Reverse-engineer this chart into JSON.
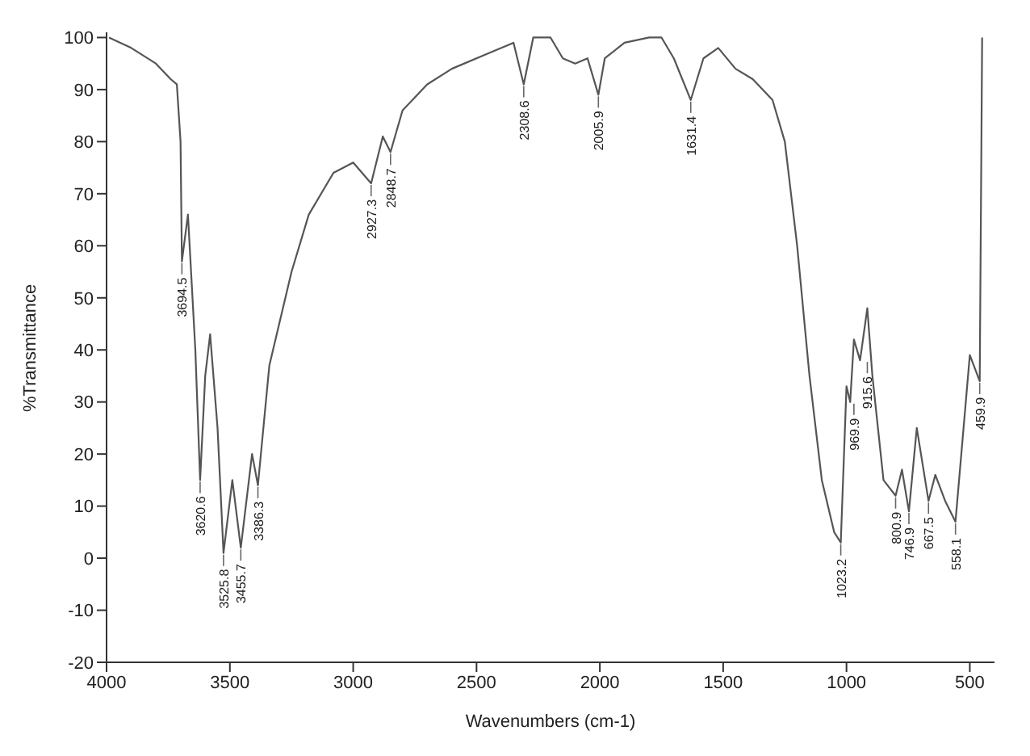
{
  "chart_data": {
    "type": "line",
    "xlabel": "Wavenumbers (cm-1)",
    "ylabel": "%Transmittance",
    "xlim": [
      4000,
      400
    ],
    "xticks": [
      4000,
      3500,
      3000,
      2500,
      2000,
      1500,
      1000,
      500
    ],
    "ylim": [
      -20,
      101
    ],
    "yticks": [
      -20,
      -10,
      0,
      10,
      20,
      30,
      40,
      50,
      60,
      70,
      80,
      90,
      100
    ],
    "grid": false,
    "legend": false,
    "marker": "none",
    "line_style": "solid",
    "series": [
      {
        "color": "#555555",
        "x": [
          3990,
          3900,
          3800,
          3740,
          3715,
          3700,
          3694.5,
          3670,
          3640,
          3620.6,
          3600,
          3580,
          3550,
          3525.8,
          3490,
          3455.7,
          3410,
          3386.3,
          3340,
          3250,
          3180,
          3080,
          3000,
          2927.3,
          2880,
          2848.7,
          2800,
          2700,
          2600,
          2450,
          2350,
          2308.6,
          2270,
          2200,
          2150,
          2100,
          2050,
          2005.9,
          1980,
          1900,
          1800,
          1750,
          1700,
          1631.4,
          1580,
          1520,
          1450,
          1380,
          1300,
          1250,
          1200,
          1150,
          1100,
          1050,
          1023.2,
          1000,
          985,
          969.9,
          945,
          915.6,
          895,
          850,
          800.9,
          775,
          746.9,
          715,
          667.5,
          640,
          600,
          558.1,
          500,
          459.9,
          450
        ],
        "values": [
          100,
          98,
          95,
          92,
          91,
          80,
          57,
          66,
          40,
          15,
          35,
          43,
          25,
          1,
          15,
          2,
          20,
          14,
          37,
          55,
          66,
          74,
          76,
          72,
          81,
          78,
          86,
          91,
          94,
          97,
          99,
          91,
          100,
          100,
          96,
          95,
          96,
          89,
          96,
          99,
          100,
          100,
          96,
          88,
          96,
          98,
          94,
          92,
          88,
          80,
          60,
          35,
          15,
          5,
          3,
          33,
          30,
          42,
          38,
          48,
          35,
          15,
          12,
          17,
          9,
          25,
          11,
          16,
          11,
          7,
          39,
          34,
          100
        ]
      }
    ],
    "annotations": [
      {
        "text": "3694.5",
        "x": 3694.5,
        "y": 57
      },
      {
        "text": "3620.6",
        "x": 3620.6,
        "y": 15
      },
      {
        "text": "3525.8",
        "x": 3525.8,
        "y": 1
      },
      {
        "text": "3455.7",
        "x": 3455.7,
        "y": 2
      },
      {
        "text": "3386.3",
        "x": 3386.3,
        "y": 14
      },
      {
        "text": "2927.3",
        "x": 2927.3,
        "y": 72
      },
      {
        "text": "2848.7",
        "x": 2848.7,
        "y": 78
      },
      {
        "text": "2308.6",
        "x": 2308.6,
        "y": 91
      },
      {
        "text": "2005.9",
        "x": 2005.9,
        "y": 89
      },
      {
        "text": "1631.4",
        "x": 1631.4,
        "y": 88
      },
      {
        "text": "1023.2",
        "x": 1023.2,
        "y": 3
      },
      {
        "text": "969.9",
        "x": 969.9,
        "y": 30
      },
      {
        "text": "915.6",
        "x": 915.6,
        "y": 38
      },
      {
        "text": "800.9",
        "x": 800.9,
        "y": 12
      },
      {
        "text": "746.9",
        "x": 746.9,
        "y": 9
      },
      {
        "text": "667.5",
        "x": 667.5,
        "y": 11
      },
      {
        "text": "558.1",
        "x": 558.1,
        "y": 7
      },
      {
        "text": "459.9",
        "x": 459.9,
        "y": 34
      }
    ]
  }
}
